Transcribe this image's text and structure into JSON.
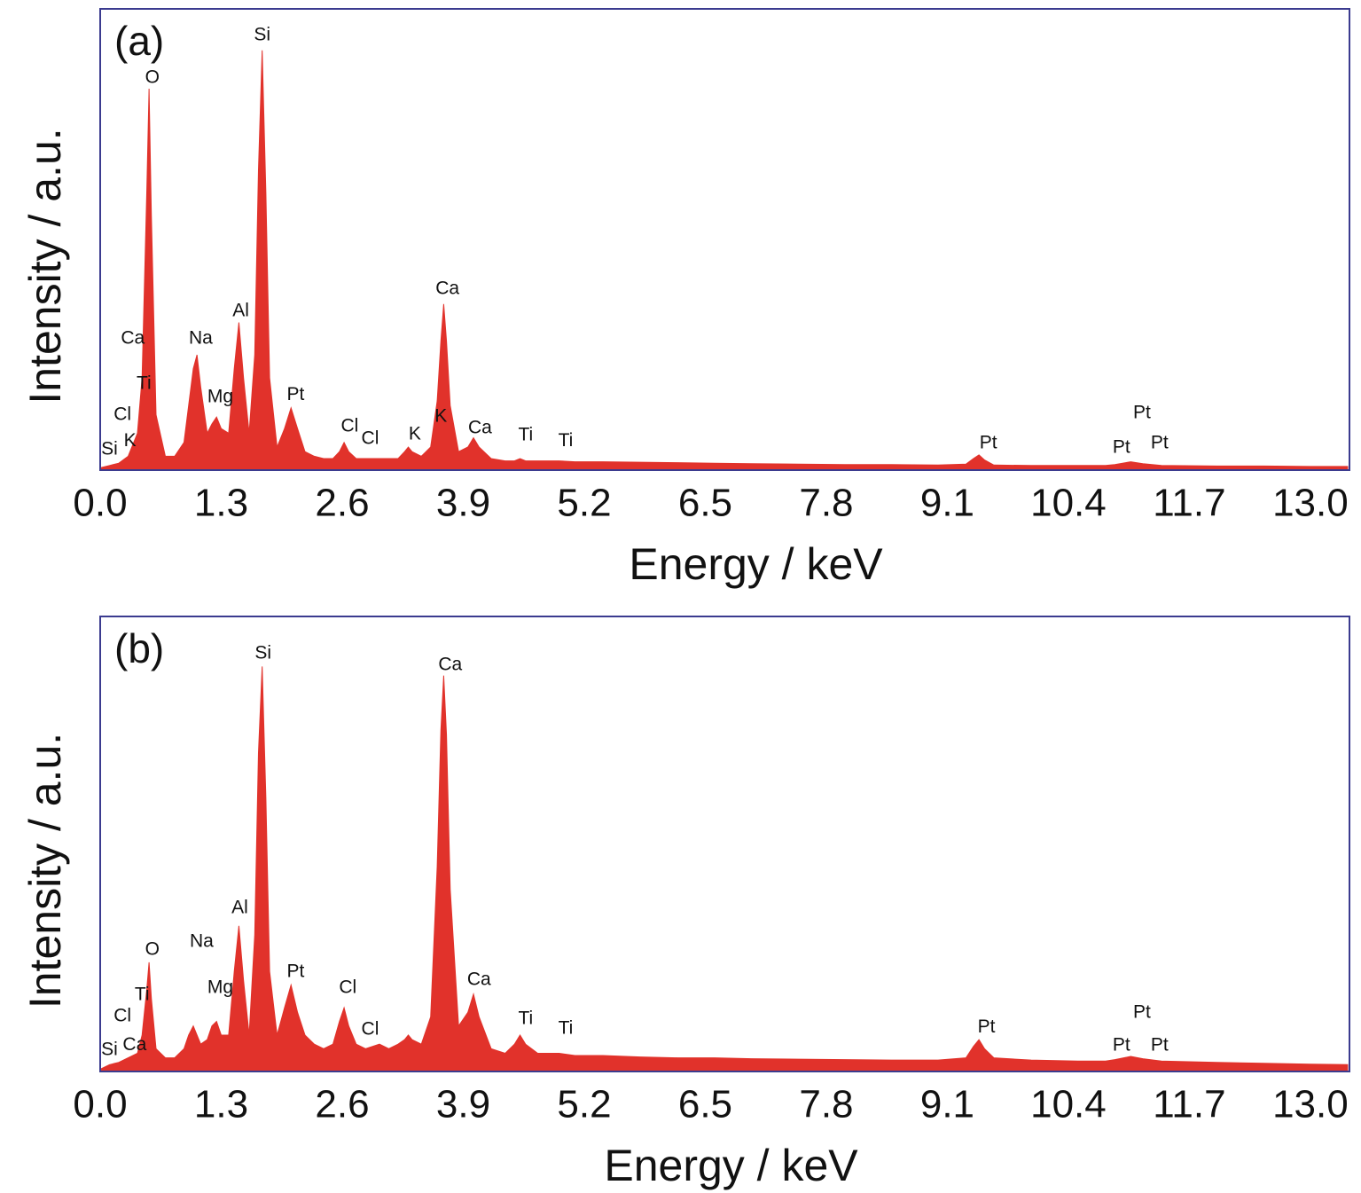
{
  "chart_data": [
    {
      "type": "area",
      "panel_label": "(a)",
      "xlabel": "Energy / keV",
      "ylabel": "Intensity / a.u.",
      "color": "#e1322b",
      "xlim": [
        0,
        13.42
      ],
      "ylim": [
        0,
        100
      ],
      "xticks": [
        {
          "value": 0,
          "label": "0.0"
        },
        1.3,
        2.6,
        3.9,
        5.2,
        6.5,
        7.8,
        9.1,
        10.4,
        11.7,
        {
          "value": 13,
          "label": "13.0"
        }
      ],
      "x": [
        0,
        0.1,
        0.2,
        0.3,
        0.4,
        0.45,
        0.5,
        0.525,
        0.55,
        0.6,
        0.7,
        0.8,
        0.9,
        0.95,
        1.0,
        1.04,
        1.08,
        1.15,
        1.2,
        1.25,
        1.3,
        1.38,
        1.44,
        1.49,
        1.54,
        1.6,
        1.66,
        1.7,
        1.74,
        1.78,
        1.82,
        1.9,
        1.98,
        2.05,
        2.12,
        2.2,
        2.3,
        2.4,
        2.5,
        2.57,
        2.62,
        2.67,
        2.75,
        2.85,
        3.0,
        3.1,
        3.2,
        3.27,
        3.31,
        3.35,
        3.45,
        3.55,
        3.62,
        3.66,
        3.69,
        3.72,
        3.76,
        3.85,
        3.95,
        4.01,
        4.07,
        4.2,
        4.35,
        4.45,
        4.51,
        4.57,
        4.7,
        4.93,
        5.1,
        5.4,
        5.8,
        6.2,
        6.6,
        7.0,
        7.5,
        8.0,
        8.5,
        9.0,
        9.3,
        9.38,
        9.44,
        9.5,
        9.6,
        10.0,
        10.5,
        10.8,
        10.9,
        11.07,
        11.2,
        11.4,
        12.0,
        12.5,
        13.0,
        13.4
      ],
      "values": [
        0.5,
        1,
        1.5,
        3,
        8,
        20,
        60,
        82.7,
        55,
        12,
        3,
        3,
        6,
        14,
        22,
        25,
        18,
        8,
        10,
        11.5,
        9,
        8,
        22,
        32,
        20,
        8,
        25,
        65,
        91,
        60,
        20,
        5,
        9,
        13.5,
        9,
        4,
        3,
        2.5,
        2.5,
        4,
        6,
        4,
        2.5,
        2.5,
        2.5,
        2.5,
        2.5,
        4,
        5,
        4,
        3,
        5,
        15,
        28,
        36,
        28,
        14,
        4,
        5,
        7,
        5,
        2.5,
        2,
        2,
        2.5,
        2,
        2,
        2,
        1.8,
        1.8,
        1.7,
        1.6,
        1.5,
        1.4,
        1.3,
        1.2,
        1.2,
        1.1,
        1.3,
        2.5,
        3.3,
        2.2,
        1.1,
        1,
        1,
        1,
        1.2,
        1.8,
        1.4,
        1,
        0.9,
        0.9,
        0.8,
        0.8
      ],
      "annotations": [
        {
          "text": "O",
          "x": 0.56,
          "y": 85
        },
        {
          "text": "Si",
          "x": 1.74,
          "y": 94.2
        },
        {
          "text": "Ca",
          "x": 0.35,
          "y": 28.5
        },
        {
          "text": "Na",
          "x": 1.08,
          "y": 28.5
        },
        {
          "text": "Al",
          "x": 1.51,
          "y": 34.4
        },
        {
          "text": "Ti",
          "x": 0.47,
          "y": 18.7
        },
        {
          "text": "Mg",
          "x": 1.29,
          "y": 15.8
        },
        {
          "text": "Pt",
          "x": 2.1,
          "y": 16.3
        },
        {
          "text": "Cl",
          "x": 0.24,
          "y": 11.9
        },
        {
          "text": "Si",
          "x": 0.1,
          "y": 4.4
        },
        {
          "text": "K",
          "x": 0.32,
          "y": 6.3
        },
        {
          "text": "Ca",
          "x": 3.73,
          "y": 39.2
        },
        {
          "text": "Cl",
          "x": 2.68,
          "y": 9.4
        },
        {
          "text": "Cl",
          "x": 2.9,
          "y": 6.7
        },
        {
          "text": "K",
          "x": 3.38,
          "y": 7.7
        },
        {
          "text": "K",
          "x": 3.66,
          "y": 11.5
        },
        {
          "text": "Ca",
          "x": 4.08,
          "y": 9
        },
        {
          "text": "Ti",
          "x": 4.57,
          "y": 7.5
        },
        {
          "text": "Ti",
          "x": 5,
          "y": 6.3
        },
        {
          "text": "Pt",
          "x": 9.54,
          "y": 5.8
        },
        {
          "text": "Pt",
          "x": 11.19,
          "y": 12.3
        },
        {
          "text": "Pt",
          "x": 10.97,
          "y": 4.8
        },
        {
          "text": "Pt",
          "x": 11.38,
          "y": 5.8
        }
      ]
    },
    {
      "type": "area",
      "panel_label": "(b)",
      "xlabel": "Energy / keV",
      "ylabel": "Intensity / a.u.",
      "color": "#e1322b",
      "xlim": [
        0,
        13.42
      ],
      "ylim": [
        0,
        100
      ],
      "xticks": [
        {
          "value": 0,
          "label": "0.0"
        },
        1.3,
        2.6,
        3.9,
        5.2,
        6.5,
        7.8,
        9.1,
        10.4,
        11.7,
        {
          "value": 13,
          "label": "13.0"
        }
      ],
      "x": [
        0,
        0.1,
        0.2,
        0.3,
        0.4,
        0.45,
        0.5,
        0.525,
        0.55,
        0.6,
        0.7,
        0.8,
        0.9,
        0.95,
        1.0,
        1.04,
        1.08,
        1.15,
        1.2,
        1.25,
        1.3,
        1.38,
        1.44,
        1.49,
        1.54,
        1.6,
        1.66,
        1.7,
        1.74,
        1.78,
        1.82,
        1.9,
        1.98,
        2.05,
        2.12,
        2.2,
        2.3,
        2.4,
        2.5,
        2.57,
        2.62,
        2.67,
        2.75,
        2.85,
        3.0,
        3.1,
        3.2,
        3.27,
        3.31,
        3.35,
        3.45,
        3.55,
        3.62,
        3.66,
        3.69,
        3.72,
        3.76,
        3.85,
        3.95,
        4.01,
        4.07,
        4.2,
        4.35,
        4.45,
        4.51,
        4.57,
        4.7,
        4.93,
        5.1,
        5.4,
        5.8,
        6.2,
        6.6,
        7.0,
        7.5,
        8.0,
        8.5,
        9.0,
        9.3,
        9.38,
        9.44,
        9.5,
        9.6,
        10.0,
        10.5,
        10.8,
        10.9,
        11.07,
        11.2,
        11.4,
        12.0,
        12.5,
        13.0,
        13.4
      ],
      "values": [
        0.5,
        1.5,
        2,
        3,
        4,
        8,
        18,
        24,
        16,
        5,
        3,
        3,
        5,
        8,
        10,
        8,
        6,
        7,
        10,
        11,
        8,
        8,
        22,
        32,
        20,
        8,
        30,
        70,
        89,
        60,
        22,
        8,
        14,
        19,
        13,
        8,
        6,
        5,
        6,
        11,
        14,
        10,
        6,
        5,
        6,
        5,
        6,
        7,
        8,
        7,
        6,
        12,
        45,
        75,
        87,
        74,
        40,
        10,
        13,
        17,
        12,
        5,
        4,
        6,
        8,
        6,
        4,
        4,
        3.5,
        3.5,
        3.2,
        3,
        3,
        2.8,
        2.7,
        2.6,
        2.5,
        2.5,
        3,
        5.5,
        7,
        5,
        3,
        2.5,
        2.3,
        2.3,
        2.6,
        3.3,
        2.8,
        2.3,
        2,
        1.8,
        1.6,
        1.5
      ],
      "annotations": [
        {
          "text": "Si",
          "x": 1.75,
          "y": 91.8
        },
        {
          "text": "Ca",
          "x": 3.76,
          "y": 89.3
        },
        {
          "text": "Al",
          "x": 1.5,
          "y": 35.9
        },
        {
          "text": "Na",
          "x": 1.09,
          "y": 28.5
        },
        {
          "text": "O",
          "x": 0.56,
          "y": 26.7
        },
        {
          "text": "Ti",
          "x": 0.45,
          "y": 16.8
        },
        {
          "text": "Mg",
          "x": 1.29,
          "y": 18.3
        },
        {
          "text": "Pt",
          "x": 2.1,
          "y": 21.8
        },
        {
          "text": "Cl",
          "x": 2.66,
          "y": 18.3
        },
        {
          "text": "Cl",
          "x": 0.24,
          "y": 12.1
        },
        {
          "text": "Ca",
          "x": 4.07,
          "y": 20.1
        },
        {
          "text": "Cl",
          "x": 2.9,
          "y": 9.2
        },
        {
          "text": "Ti",
          "x": 4.57,
          "y": 11.5
        },
        {
          "text": "Ti",
          "x": 5,
          "y": 9.4
        },
        {
          "text": "Si",
          "x": 0.1,
          "y": 4.7
        },
        {
          "text": "Ca",
          "x": 0.37,
          "y": 5.8
        },
        {
          "text": "Pt",
          "x": 9.52,
          "y": 9.7
        },
        {
          "text": "Pt",
          "x": 11.19,
          "y": 12.9
        },
        {
          "text": "Pt",
          "x": 10.97,
          "y": 5.7
        },
        {
          "text": "Pt",
          "x": 11.38,
          "y": 5.7
        }
      ]
    }
  ]
}
